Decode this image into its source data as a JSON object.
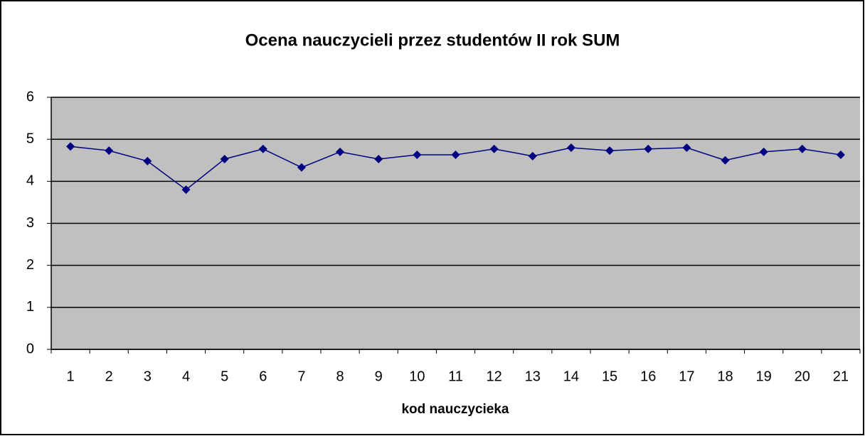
{
  "chart_data": {
    "type": "line",
    "title": "Ocena nauczycieli przez studentów II rok SUM",
    "x_label": "kod nauczycieka",
    "categories": [
      "1",
      "2",
      "3",
      "4",
      "5",
      "6",
      "7",
      "8",
      "9",
      "10",
      "11",
      "12",
      "13",
      "14",
      "15",
      "16",
      "17",
      "18",
      "19",
      "20",
      "21"
    ],
    "values": [
      4.83,
      4.73,
      4.48,
      3.8,
      4.53,
      4.77,
      4.33,
      4.7,
      4.53,
      4.63,
      4.63,
      4.77,
      4.6,
      4.8,
      4.73,
      4.77,
      4.8,
      4.5,
      4.7,
      4.77,
      4.63
    ],
    "color": "#000080",
    "plot_background": "#c0c0c0",
    "ylim": [
      0,
      6
    ],
    "yticks": [
      0,
      1,
      2,
      3,
      4,
      5,
      6
    ],
    "grid": true
  }
}
